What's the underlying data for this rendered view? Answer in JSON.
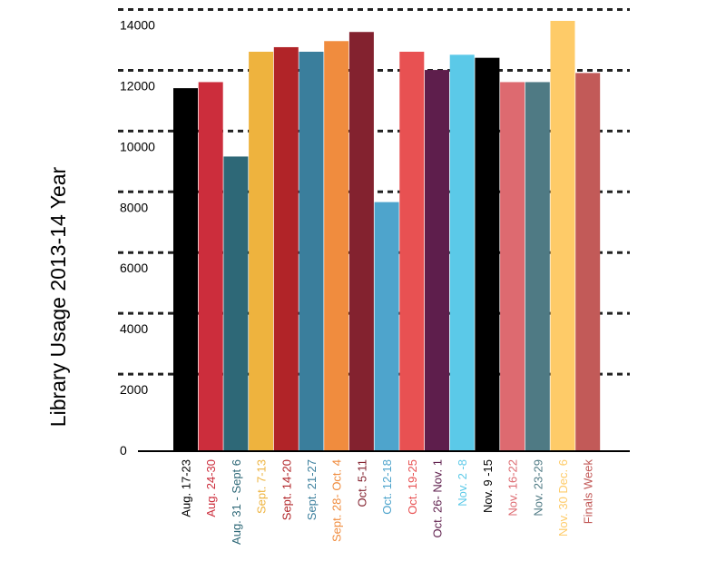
{
  "chart_data": {
    "type": "bar",
    "title": "",
    "xlabel": "",
    "ylabel": "Library Usage 2013-14 Year",
    "ylim": [
      0,
      14000
    ],
    "yticks": [
      0,
      2000,
      4000,
      6000,
      8000,
      10000,
      12000,
      14000
    ],
    "grid": true,
    "categories": [
      "Aug. 17-23",
      "Aug. 24-30",
      "Aug. 31 - Sept 6",
      "Sept. 7-13",
      "Sept. 14-20",
      "Sept. 21-27",
      "Sept. 28- Oct. 4",
      "Oct. 5-11",
      "Oct. 12-18",
      "Oct. 19-25",
      "Oct. 26- Nov. 1",
      "Nov. 2 -8",
      "Nov. 9 -15",
      "Nov. 16-22",
      "Nov. 23-29",
      "Nov. 30 Dec. 6",
      "Finals Week"
    ],
    "values": [
      11950,
      12150,
      9700,
      13150,
      13300,
      13150,
      13500,
      13800,
      8200,
      13150,
      12550,
      13050,
      12950,
      12150,
      12150,
      14900,
      12450
    ],
    "colors": [
      "#000000",
      "#cc2d3c",
      "#2e6877",
      "#eeb33e",
      "#b12428",
      "#3a7e9c",
      "#f08c3e",
      "#83222f",
      "#4ea4cc",
      "#e85152",
      "#5e1e4c",
      "#5bc9e8",
      "#000000",
      "#dd6a70",
      "#4f7a84",
      "#fecb68",
      "#c25a58"
    ]
  }
}
